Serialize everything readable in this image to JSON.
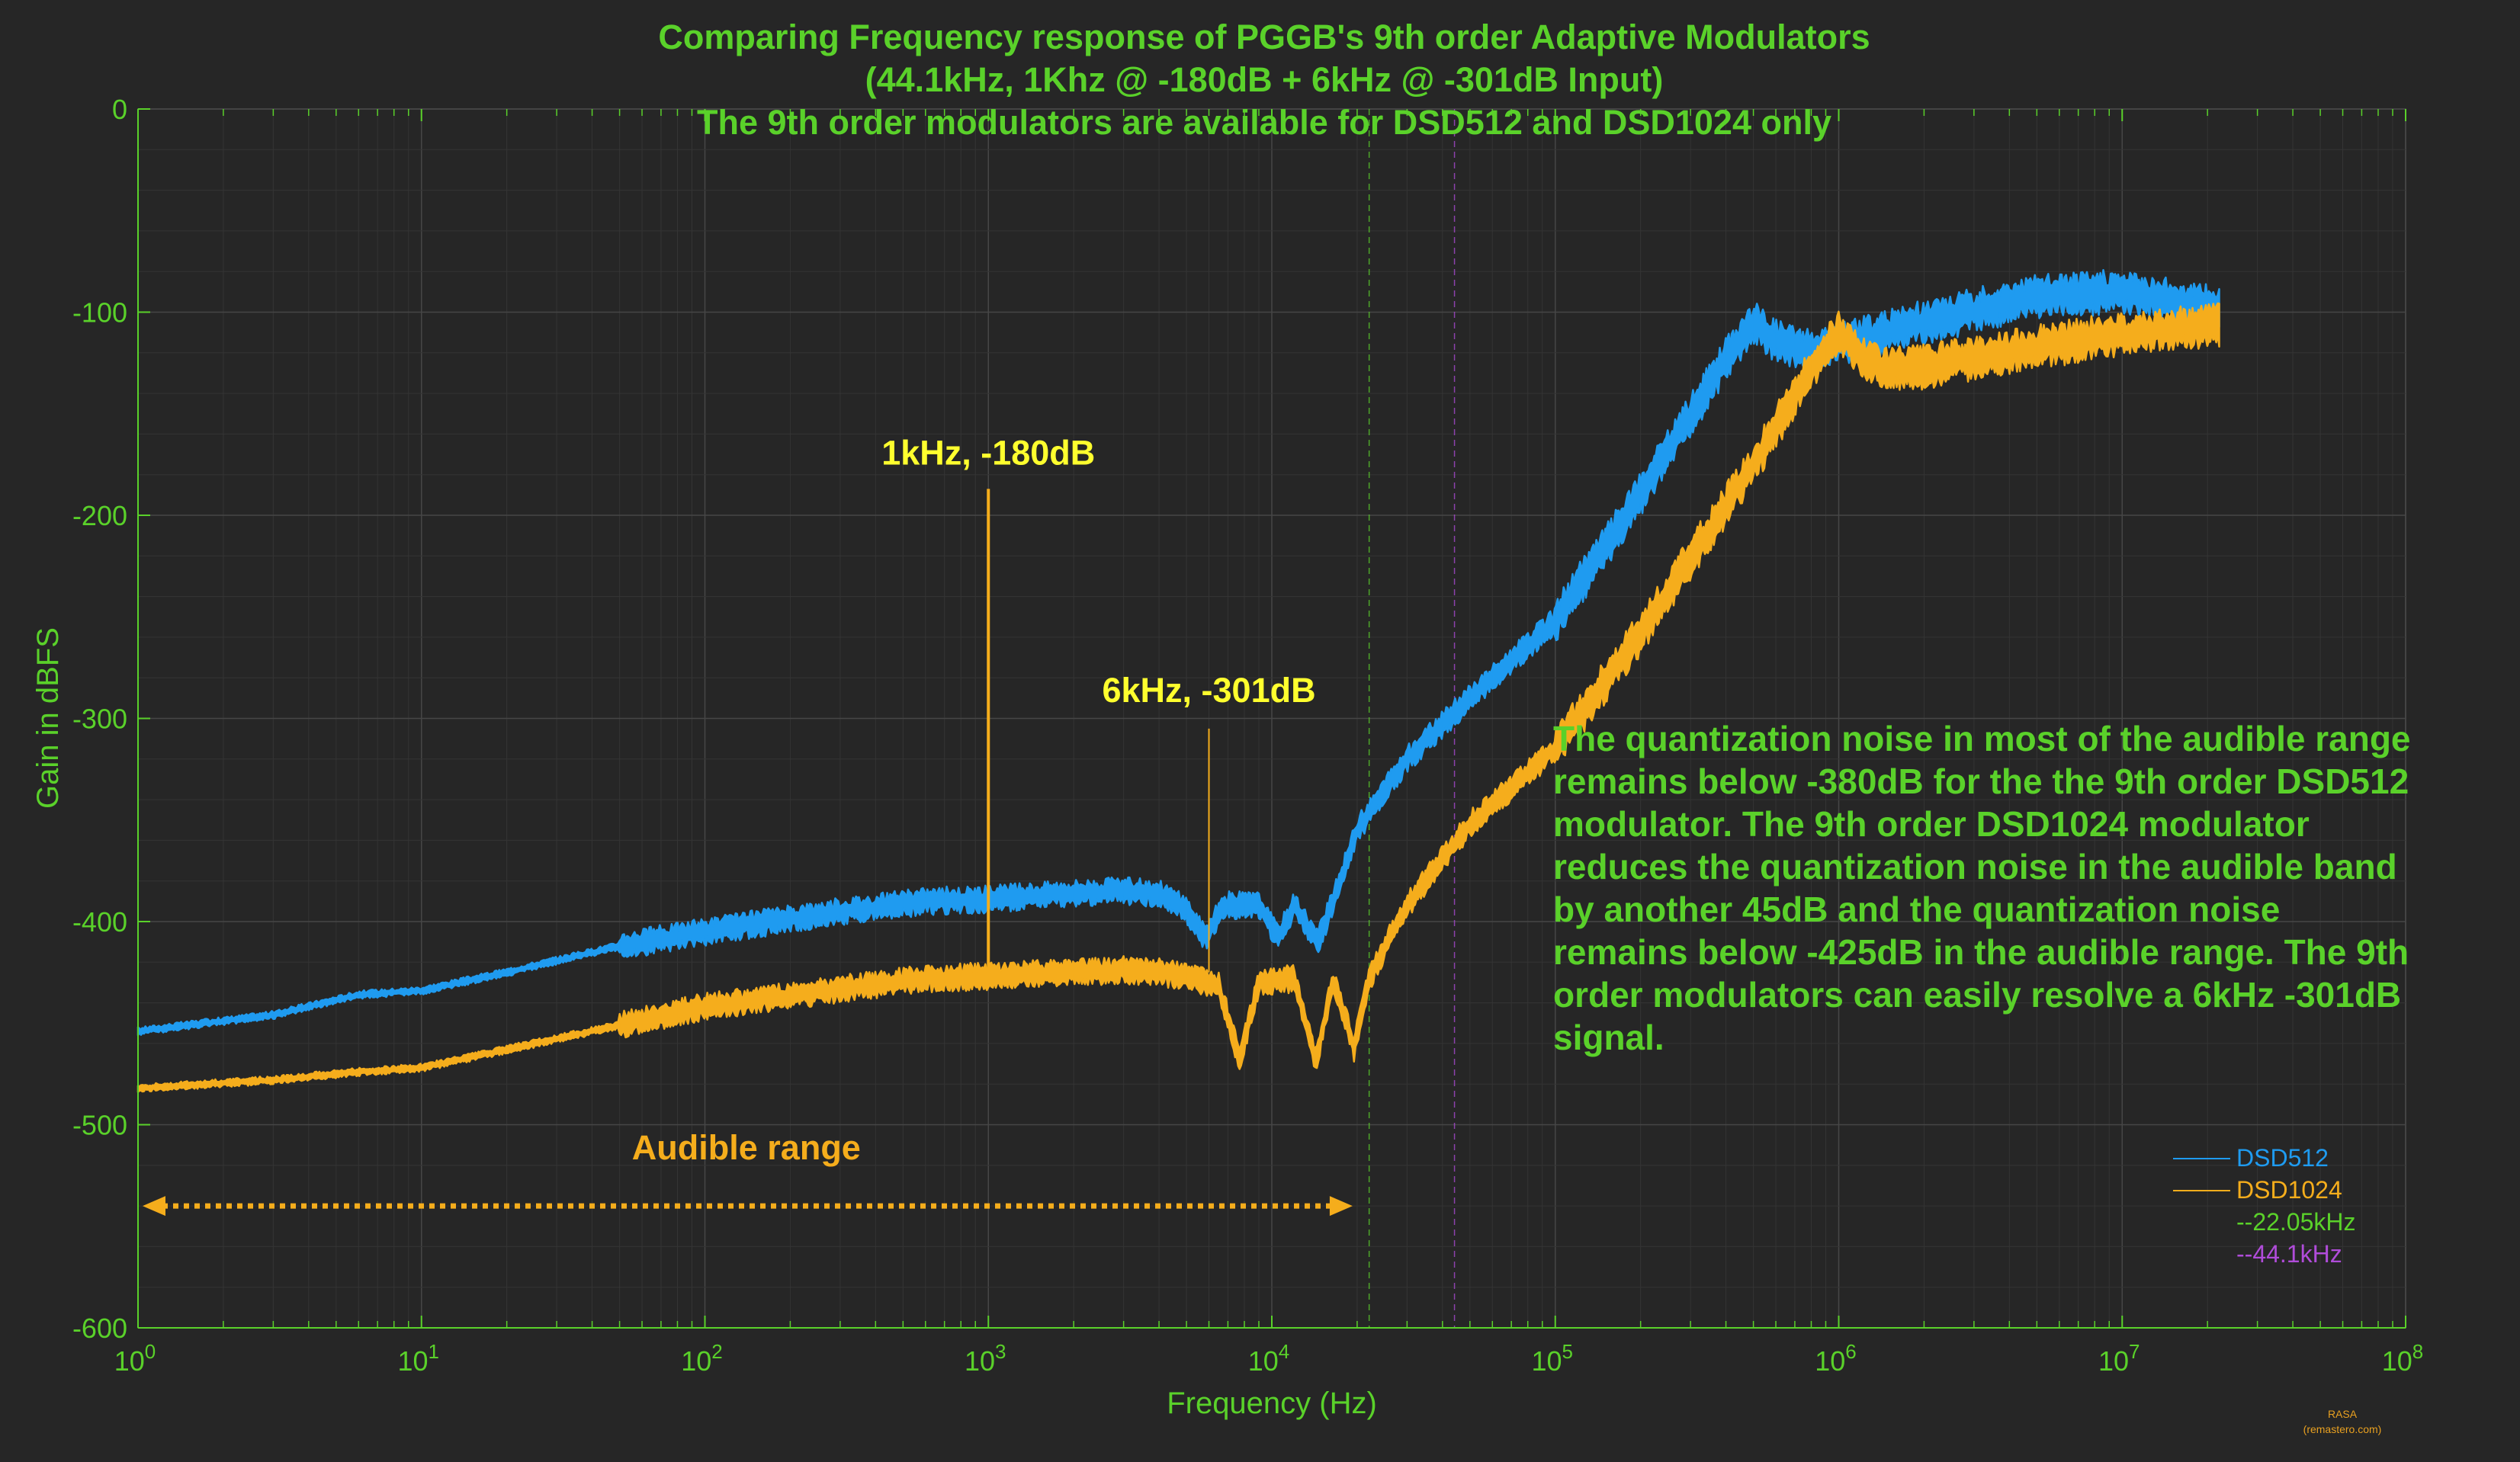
{
  "chart_data": {
    "type": "line",
    "title_lines": [
      "Comparing Frequency response of PGGB's 9th order Adaptive Modulators",
      "(44.1kHz, 1Khz @ -180dB  + 6kHz @ -301dB Input)",
      "The 9th order modulators are available for DSD512 and DSD1024 only"
    ],
    "xlabel": "Frequency (Hz)",
    "ylabel": "Gain in dBFS",
    "x_scale": "log",
    "xlim": [
      1,
      100000000
    ],
    "ylim": [
      -600,
      0
    ],
    "x_ticks": [
      {
        "base": "10",
        "exp": "0",
        "value": 1
      },
      {
        "base": "10",
        "exp": "1",
        "value": 10
      },
      {
        "base": "10",
        "exp": "2",
        "value": 100
      },
      {
        "base": "10",
        "exp": "3",
        "value": 1000
      },
      {
        "base": "10",
        "exp": "4",
        "value": 10000
      },
      {
        "base": "10",
        "exp": "5",
        "value": 100000
      },
      {
        "base": "10",
        "exp": "6",
        "value": 1000000
      },
      {
        "base": "10",
        "exp": "7",
        "value": 10000000
      },
      {
        "base": "10",
        "exp": "8",
        "value": 100000000
      }
    ],
    "y_ticks": [
      {
        "label": "0",
        "value": 0
      },
      {
        "label": "-100",
        "value": -100
      },
      {
        "label": "-200",
        "value": -200
      },
      {
        "label": "-300",
        "value": -300
      },
      {
        "label": "-400",
        "value": -400
      },
      {
        "label": "-500",
        "value": -500
      },
      {
        "label": "-600",
        "value": -600
      }
    ],
    "grid": true,
    "legend_position": "bottom-right",
    "series": [
      {
        "name": "DSD512",
        "color": "#1f9bf0",
        "points": [
          [
            1,
            -454
          ],
          [
            3,
            -446
          ],
          [
            6,
            -436
          ],
          [
            10,
            -434
          ],
          [
            20,
            -425
          ],
          [
            50,
            -412
          ],
          [
            100,
            -405
          ],
          [
            300,
            -395
          ],
          [
            600,
            -390
          ],
          [
            1000,
            -389
          ],
          [
            2000,
            -386
          ],
          [
            3000,
            -385
          ],
          [
            4000,
            -386
          ],
          [
            5000,
            -394
          ],
          [
            5800,
            -408
          ],
          [
            6800,
            -392
          ],
          [
            9000,
            -392
          ],
          [
            10500,
            -408
          ],
          [
            12000,
            -392
          ],
          [
            14500,
            -410
          ],
          [
            16500,
            -390
          ],
          [
            20000,
            -355
          ],
          [
            30000,
            -320
          ],
          [
            50000,
            -290
          ],
          [
            100000,
            -252
          ],
          [
            200000,
            -190
          ],
          [
            400000,
            -123
          ],
          [
            500000,
            -105
          ],
          [
            600000,
            -114
          ],
          [
            800000,
            -120
          ],
          [
            1000000,
            -116
          ],
          [
            2000000,
            -105
          ],
          [
            5000000,
            -92
          ],
          [
            10000000,
            -90
          ],
          [
            22000000,
            -98
          ]
        ],
        "band": 5
      },
      {
        "name": "DSD1024",
        "color": "#f5ad1c",
        "points": [
          [
            1,
            -482
          ],
          [
            3,
            -478
          ],
          [
            6,
            -474
          ],
          [
            10,
            -472
          ],
          [
            20,
            -463
          ],
          [
            50,
            -451
          ],
          [
            100,
            -442
          ],
          [
            300,
            -433
          ],
          [
            600,
            -428
          ],
          [
            1000,
            -427
          ],
          [
            2000,
            -425
          ],
          [
            3000,
            -424
          ],
          [
            4000,
            -425
          ],
          [
            5000,
            -427
          ],
          [
            6500,
            -432
          ],
          [
            7700,
            -468
          ],
          [
            9000,
            -430
          ],
          [
            12000,
            -428
          ],
          [
            14300,
            -468
          ],
          [
            16500,
            -429
          ],
          [
            19500,
            -462
          ],
          [
            22000,
            -428
          ],
          [
            30000,
            -392
          ],
          [
            50000,
            -352
          ],
          [
            100000,
            -315
          ],
          [
            200000,
            -258
          ],
          [
            500000,
            -175
          ],
          [
            800000,
            -128
          ],
          [
            1000000,
            -110
          ],
          [
            1200000,
            -122
          ],
          [
            1500000,
            -128
          ],
          [
            2000000,
            -127
          ],
          [
            5000000,
            -117
          ],
          [
            10000000,
            -111
          ],
          [
            22000000,
            -106
          ]
        ],
        "band": 5
      },
      {
        "name": "--22.05kHz",
        "color": "#5ad12a",
        "vline": 22050
      },
      {
        "name": "--44.1kHz",
        "color": "#b04cd9",
        "vline": 44100
      }
    ],
    "spikes": [
      {
        "x": 1000,
        "y_from": -430,
        "y_to": -187,
        "color": "#f5ad1c"
      },
      {
        "x": 6000,
        "y_from": -425,
        "y_to": -305,
        "color": "#f5ad1c"
      }
    ],
    "annotations": [
      {
        "text": "1kHz, -180dB",
        "x": 1000,
        "y": -175,
        "style": "annot-yellow"
      },
      {
        "text": "6kHz, -301dB",
        "x": 6000,
        "y": -292,
        "style": "annot-yellow"
      },
      {
        "text": "Audible range",
        "x": 140,
        "y": -517,
        "style": "annot-orange"
      }
    ],
    "audible_range": {
      "from": 1,
      "to": 20000,
      "y": -540,
      "color": "#f5ad1c"
    },
    "note_lines": [
      "The quantization noise in most of the audible range",
      "remains below -380dB for the the 9th order DSD512",
      "modulator. The 9th order DSD1024 modulator",
      "reduces the quantization noise in the audible band",
      "by another 45dB and the quantization noise",
      "remains below -425dB in the audible range. The 9th",
      "order modulators can easily resolve a 6kHz -301dB",
      "signal."
    ],
    "credit_lines": [
      "RASA",
      "(remastero.com)"
    ]
  }
}
